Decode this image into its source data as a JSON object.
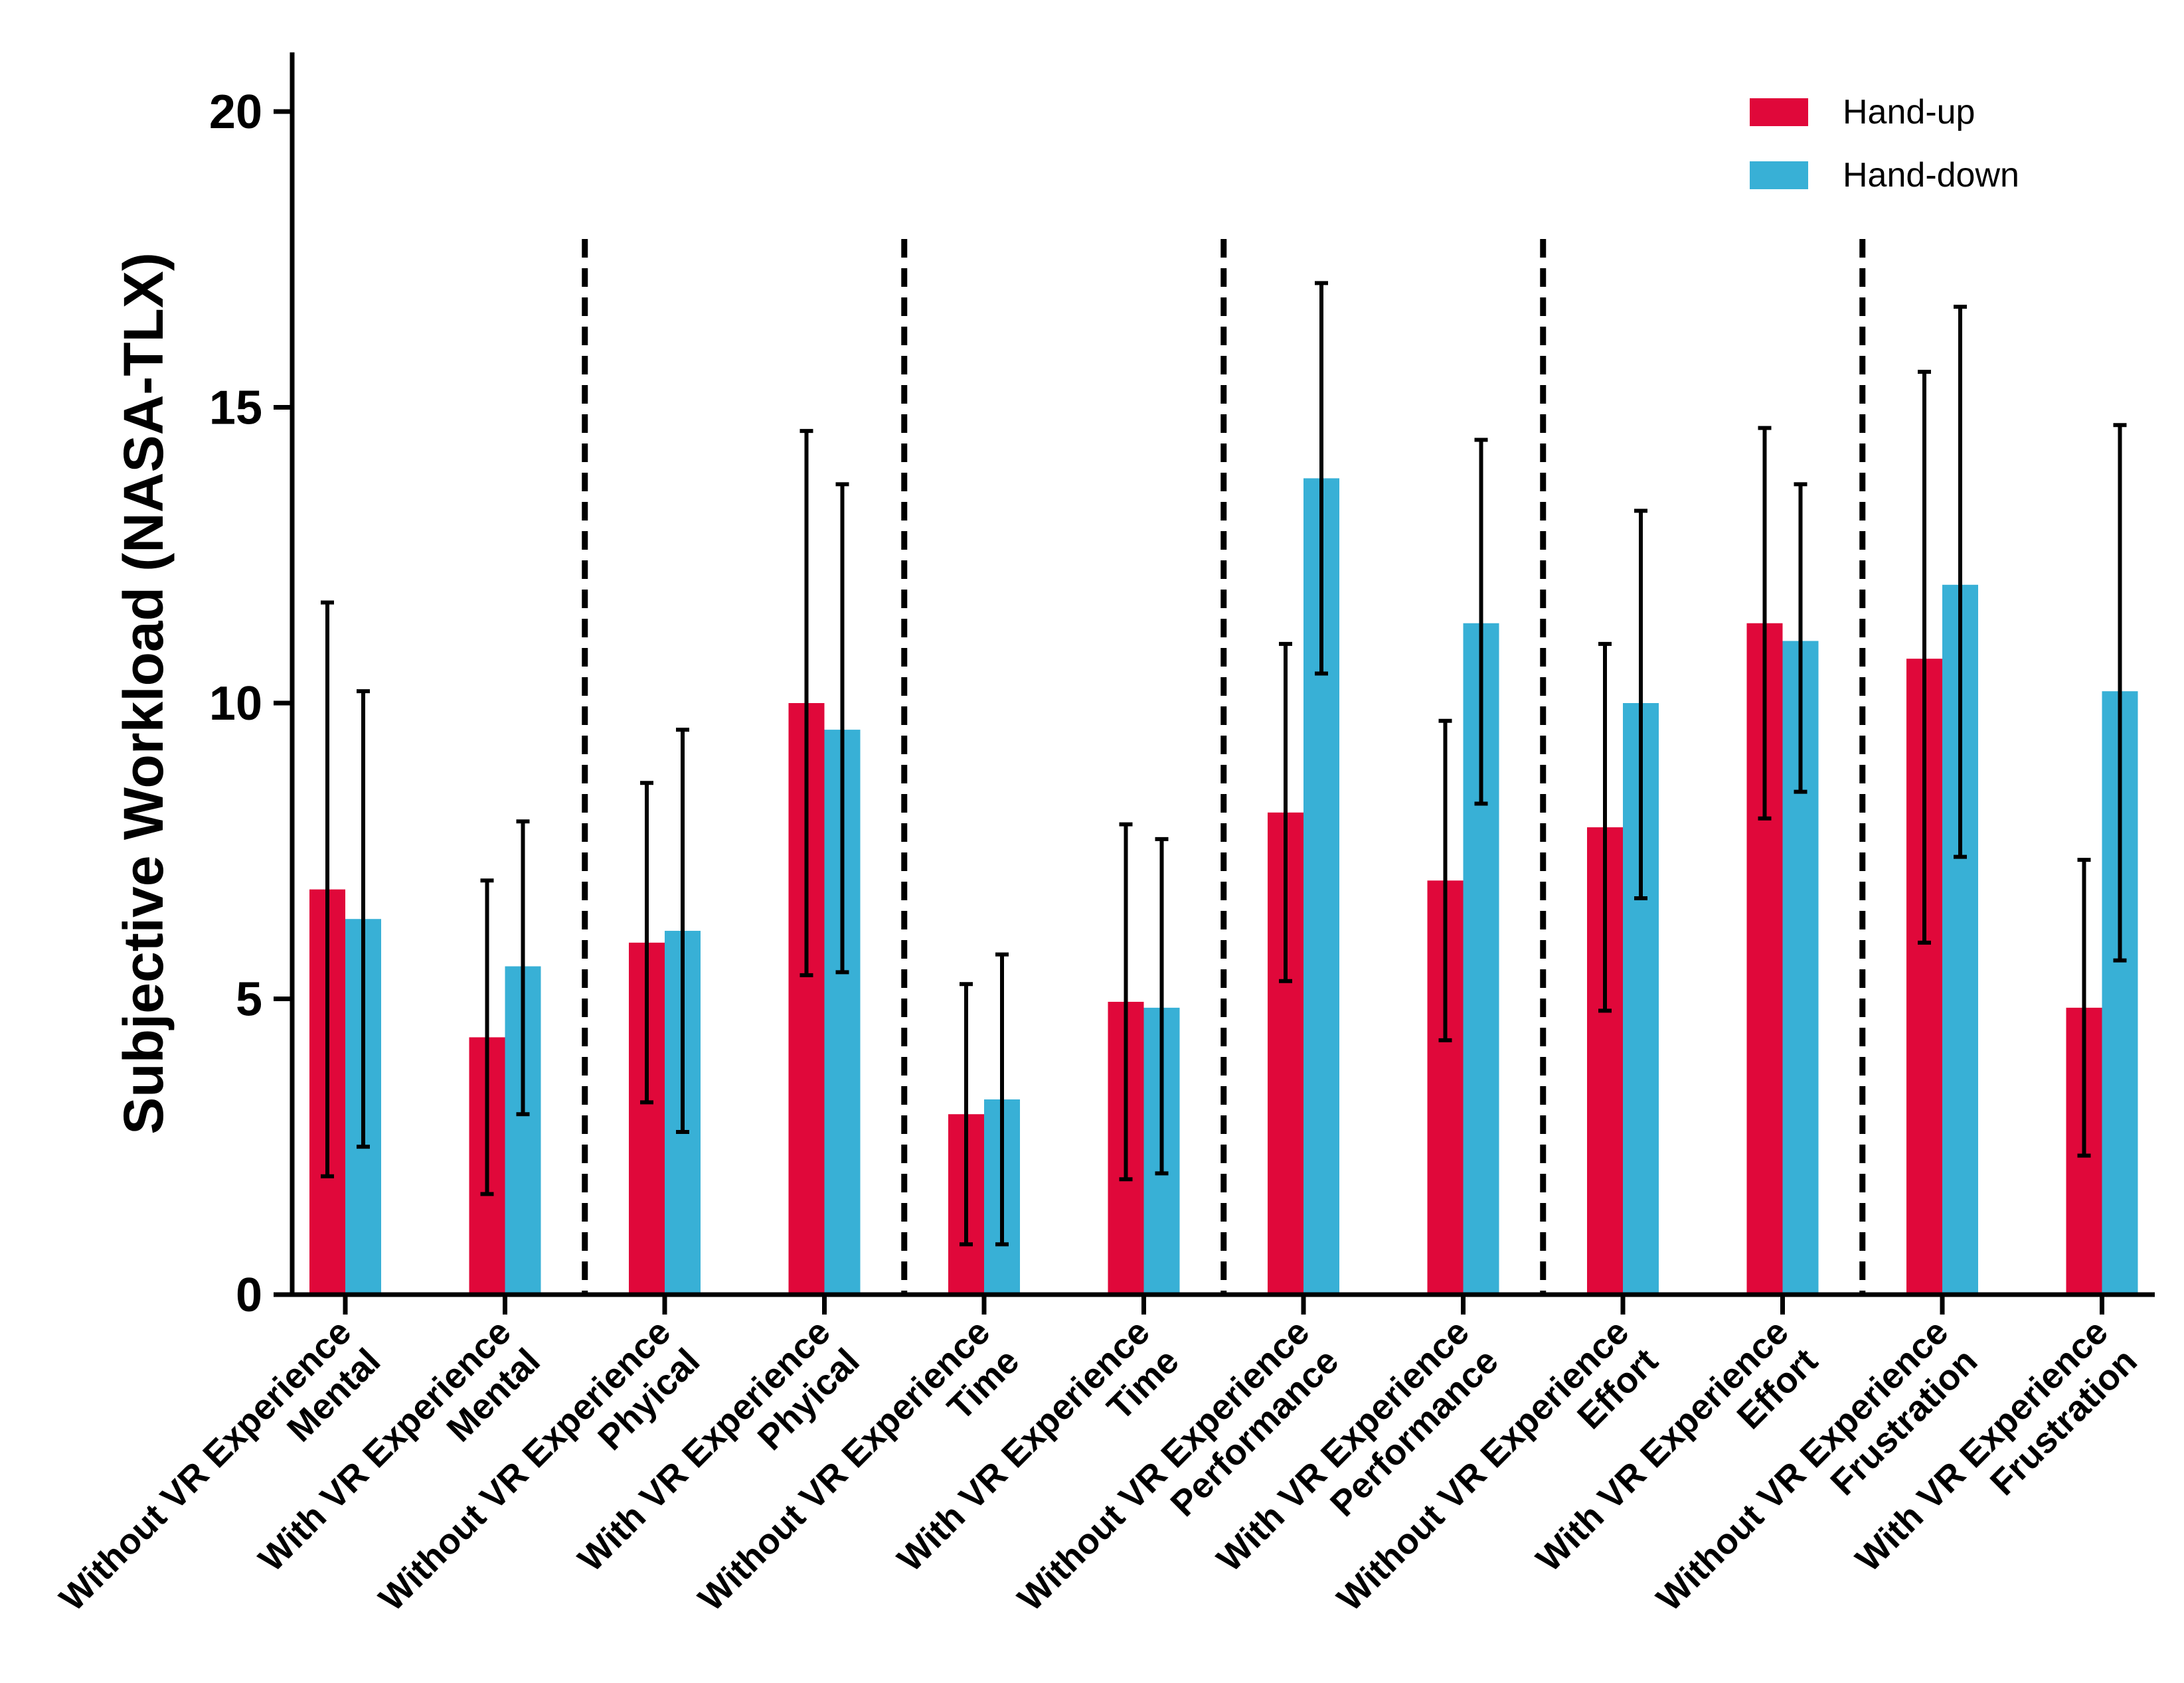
{
  "chart_data": {
    "type": "bar",
    "title": "",
    "xlabel": "",
    "ylabel": "Subjective Workload (NASA-TLX)",
    "ylim": [
      0,
      21
    ],
    "yticks": [
      0,
      5,
      10,
      15,
      20
    ],
    "grid": false,
    "legend_position": "top-right",
    "categories": [
      [
        "Without VR Experience",
        "Mental"
      ],
      [
        "With VR Experience",
        "Mental"
      ],
      [
        "Without VR Experience",
        "Phyical"
      ],
      [
        "With VR Experience",
        "Phyical"
      ],
      [
        "Without VR Experience",
        "Time"
      ],
      [
        "With VR Experience",
        "Time"
      ],
      [
        "Without VR Experience",
        "Performance"
      ],
      [
        "With VR Experience",
        "Performance"
      ],
      [
        "Without VR Experience",
        "Effort"
      ],
      [
        "With VR Experience",
        "Effort"
      ],
      [
        "Without VR Experience",
        "Frustration"
      ],
      [
        "With VR Experience",
        "Frustration"
      ]
    ],
    "series": [
      {
        "name": "Hand-up",
        "color": "#e0083a",
        "values": [
          6.85,
          4.35,
          5.95,
          10.0,
          3.05,
          4.95,
          8.15,
          7.0,
          7.9,
          11.35,
          10.75,
          4.85
        ],
        "error_low": [
          2.0,
          1.7,
          3.25,
          5.4,
          0.85,
          1.95,
          5.3,
          4.3,
          4.8,
          8.05,
          5.95,
          2.35
        ],
        "error_high": [
          11.7,
          7.0,
          8.65,
          14.6,
          5.25,
          7.95,
          11.0,
          9.7,
          11.0,
          14.65,
          15.6,
          7.35
        ]
      },
      {
        "name": "Hand-down",
        "color": "#38b0d6",
        "values": [
          6.35,
          5.55,
          6.15,
          9.55,
          3.3,
          4.85,
          13.8,
          11.35,
          10.0,
          11.05,
          12.0,
          10.2
        ],
        "error_low": [
          2.5,
          3.05,
          2.75,
          5.45,
          0.85,
          2.05,
          10.5,
          8.3,
          6.7,
          8.5,
          7.4,
          5.65
        ],
        "error_high": [
          10.2,
          8.0,
          9.55,
          13.7,
          5.75,
          7.7,
          17.1,
          14.45,
          13.25,
          13.7,
          16.7,
          14.7
        ]
      }
    ],
    "separators_after_category": [
      2,
      4,
      6,
      8,
      10
    ]
  }
}
